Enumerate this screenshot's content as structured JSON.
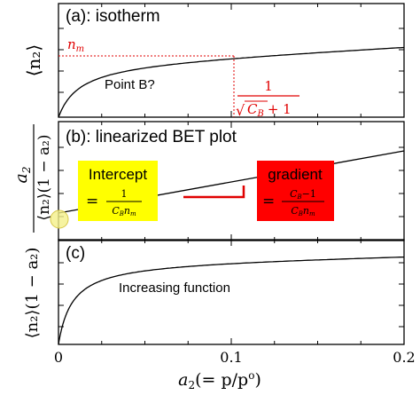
{
  "chart_data": [
    {
      "type": "line",
      "panel_label": "(a): isotherm",
      "ylabel": "⟨n₂⟩",
      "curve_shape": "saturating isotherm",
      "reference_line_label": "n",
      "reference_line_label_sub": "m",
      "annotation_text": "Point B?",
      "point_b_x": 0.1,
      "formula_numerator": "1",
      "formula_denominator": "C",
      "formula_denominator_sub": "B",
      "formula_denominator_tail": "+ 1",
      "sqrt_symbol": "√",
      "xlim": [
        0,
        0.2
      ],
      "grid": false,
      "line_color": "#000000",
      "annotation_color": "#e00000"
    },
    {
      "type": "line",
      "panel_label": "(b): linearized BET plot",
      "ylabel_num": "a",
      "ylabel_num_sub": "2",
      "ylabel_den": "⟨n₂⟩(1 − a₂)",
      "curve_shape": "straight line",
      "intercept_box": {
        "title": "Intercept",
        "eq": "=",
        "num": "1",
        "den_main": "C",
        "den_sub": "B",
        "den_tail": "n",
        "den_tail_sub": "m",
        "color": "#ffff00"
      },
      "gradient_box": {
        "title": "gradient",
        "eq": "=",
        "num_main": "C",
        "num_sub": "B",
        "num_tail": "−1",
        "den_main": "C",
        "den_sub": "B",
        "den_tail": "n",
        "den_tail_sub": "m",
        "color": "#ff0000"
      },
      "xlim": [
        0,
        0.2
      ],
      "grid": false,
      "line_color": "#000000",
      "slope_marker_color": "#e00000"
    },
    {
      "type": "line",
      "panel_label": "(c)",
      "ylabel": "⟨n₂⟩(1 − a₂)",
      "curve_shape": "increasing saturating function",
      "annotation_text": "Increasing function",
      "xlim": [
        0,
        0.2
      ],
      "grid": false,
      "line_color": "#000000",
      "xlabel_main": "a",
      "xlabel_sub": "2",
      "xlabel_tail": "(= p/p",
      "xlabel_sup": "o",
      "xlabel_close": ")",
      "xticks": [
        {
          "value": 0,
          "label": "0"
        },
        {
          "value": 0.1,
          "label": "0.1"
        },
        {
          "value": 0.2,
          "label": "0.2"
        }
      ]
    }
  ]
}
